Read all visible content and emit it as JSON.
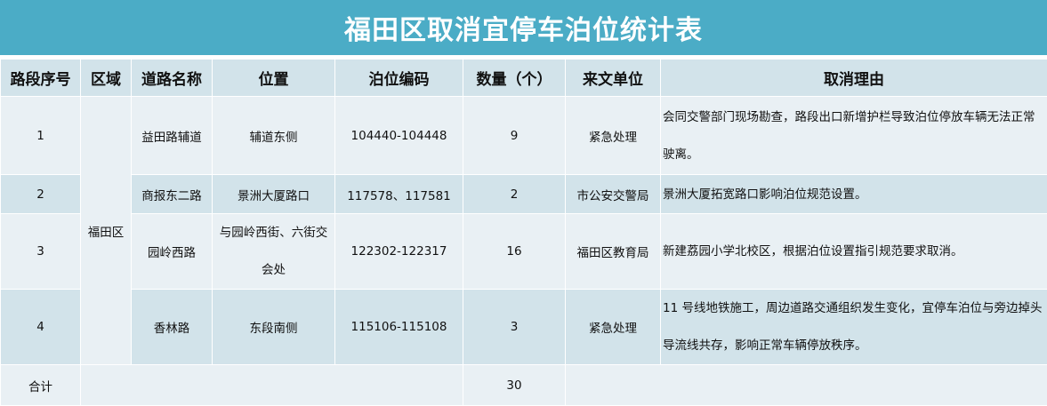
{
  "title": "福田区取消宜停车泊位统计表",
  "headers": [
    "路段序号",
    "区域",
    "道路名称",
    "位置",
    "泊位编码",
    "数量（个）",
    "来文单位",
    "取消理由"
  ],
  "region": "福田区",
  "rows": [
    {
      "no": "1",
      "road": "益田路辅道",
      "location": "辅道东侧",
      "codes": "104440-104448",
      "count": "9",
      "source": "紧急处理",
      "reason": "会同交警部门现场勘查，路段出口新增护栏导致泊位停放车辆无法正常驶离。"
    },
    {
      "no": "2",
      "road": "商报东二路",
      "location": "景洲大厦路口",
      "codes": "117578、117581",
      "count": "2",
      "source": "市公安交警局",
      "reason": "景洲大厦拓宽路口影响泊位规范设置。"
    },
    {
      "no": "3",
      "road": "园岭西路",
      "location": "与园岭西街、六街交会处",
      "codes": "122302-122317",
      "count": "16",
      "source": "福田区教育局",
      "reason": "新建荔园小学北校区，根据泊位设置指引规范要求取消。"
    },
    {
      "no": "4",
      "road": "香林路",
      "location": "东段南侧",
      "codes": "115106-115108",
      "count": "3",
      "source": "紧急处理",
      "reason": "11 号线地铁施工，周边道路交通组织发生变化，宜停车泊位与旁边掉头导流线共存，影响正常车辆停放秩序。"
    }
  ],
  "total": {
    "label": "合计",
    "count": "30"
  },
  "colors": {
    "title_bg": "#4bacc6",
    "row_light": "#e9f0f4",
    "row_dark": "#d2e3ea"
  }
}
